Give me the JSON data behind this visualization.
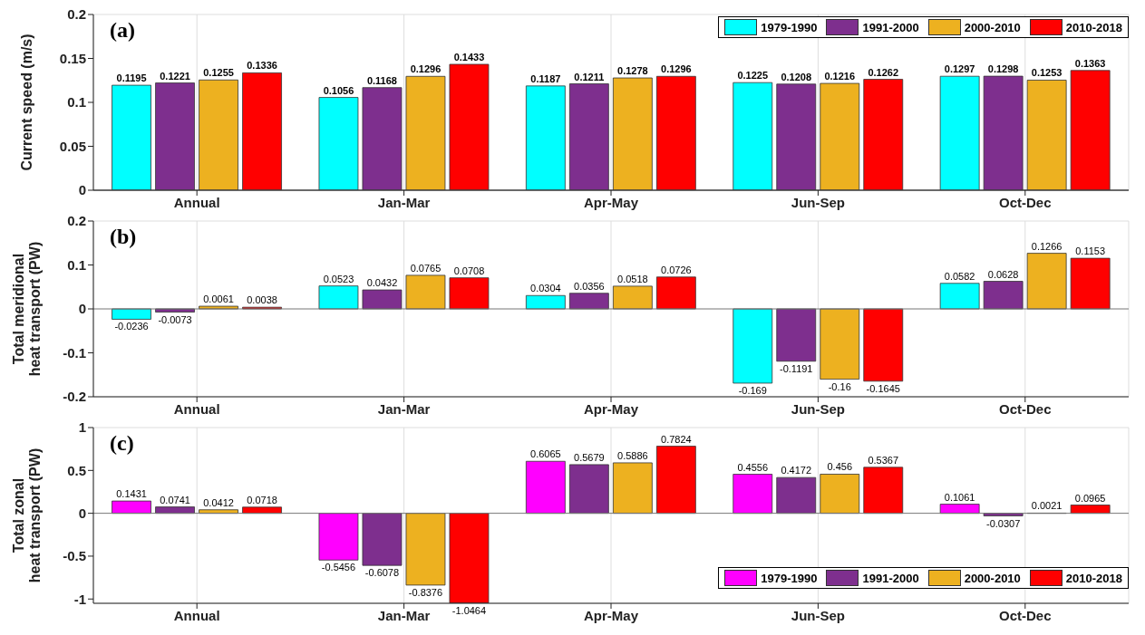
{
  "chart_data": [
    {
      "type": "bar",
      "title": "(a)",
      "ylabel": "Current speed (m/s)",
      "categories": [
        "Annual",
        "Jan-Mar",
        "Apr-May",
        "Jun-Sep",
        "Oct-Dec"
      ],
      "series": [
        {
          "name": "1979-1990",
          "color": "#00ffff",
          "values": [
            0.1195,
            0.1056,
            0.1187,
            0.1225,
            0.1297
          ]
        },
        {
          "name": "1991-2000",
          "color": "#7e2f8e",
          "values": [
            0.1221,
            0.1168,
            0.1211,
            0.1208,
            0.1298
          ]
        },
        {
          "name": "2000-2010",
          "color": "#edb120",
          "values": [
            0.1255,
            0.1296,
            0.1278,
            0.1216,
            0.1253
          ]
        },
        {
          "name": "2010-2018",
          "color": "#ff0000",
          "values": [
            0.1336,
            0.1433,
            0.1296,
            0.1262,
            0.1363
          ]
        }
      ],
      "ylim": [
        0,
        0.2
      ],
      "yticks": [
        0,
        0.05,
        0.1,
        0.15,
        0.2
      ],
      "grid": true,
      "legend": "top right",
      "data_labels": true
    },
    {
      "type": "bar",
      "title": "(b)",
      "ylabel": "Total meridional\nheat transport (PW)",
      "categories": [
        "Annual",
        "Jan-Mar",
        "Apr-May",
        "Jun-Sep",
        "Oct-Dec"
      ],
      "series": [
        {
          "color": "#00ffff",
          "values": [
            -0.0236,
            0.0523,
            0.0304,
            -0.169,
            0.0582
          ]
        },
        {
          "color": "#7e2f8e",
          "values": [
            -0.0073,
            0.0432,
            0.0356,
            -0.1191,
            0.0628
          ]
        },
        {
          "color": "#edb120",
          "values": [
            0.0061,
            0.0765,
            0.0518,
            -0.16,
            0.1266
          ]
        },
        {
          "color": "#ff0000",
          "values": [
            0.0038,
            0.0708,
            0.0726,
            -0.1645,
            0.1153
          ]
        }
      ],
      "ylim": [
        -0.2,
        0.2
      ],
      "yticks": [
        -0.2,
        -0.1,
        0,
        0.1,
        0.2
      ],
      "grid": true,
      "data_labels": true
    },
    {
      "type": "bar",
      "title": "(c)",
      "ylabel": "Total zonal\nheat transport (PW)",
      "categories": [
        "Annual",
        "Jan-Mar",
        "Apr-May",
        "Jun-Sep",
        "Oct-Dec"
      ],
      "series": [
        {
          "name": "1979-1990",
          "color": "#ff00ff",
          "values": [
            0.1431,
            -0.5456,
            0.6065,
            0.4556,
            0.1061
          ]
        },
        {
          "name": "1991-2000",
          "color": "#7e2f8e",
          "values": [
            0.0741,
            -0.6078,
            0.5679,
            0.4172,
            -0.0307
          ]
        },
        {
          "name": "2000-2010",
          "color": "#edb120",
          "values": [
            0.0412,
            -0.8376,
            0.5886,
            0.456,
            0.0021
          ]
        },
        {
          "name": "2010-2018",
          "color": "#ff0000",
          "values": [
            0.0718,
            -1.0464,
            0.7824,
            0.5367,
            0.0965
          ]
        }
      ],
      "ylim": [
        -1.05,
        1
      ],
      "yticks": [
        -1,
        -0.5,
        0,
        0.5,
        1
      ],
      "grid": true,
      "legend": "bottom right",
      "data_labels": true
    }
  ]
}
